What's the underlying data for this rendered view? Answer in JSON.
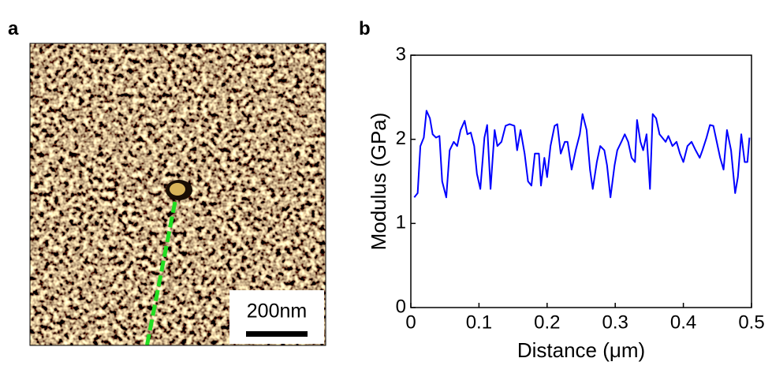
{
  "panel_a": {
    "label": "a",
    "scale_bar_label": "200nm"
  },
  "chart_data": {
    "type": "line",
    "panel_label": "b",
    "xlabel": "Distance (μm)",
    "ylabel": "Modulus (GPa)",
    "xlim": [
      0,
      0.5
    ],
    "ylim": [
      0,
      3
    ],
    "xticks": [
      0,
      0.1,
      0.2,
      0.3,
      0.4,
      0.5
    ],
    "yticks": [
      0,
      1,
      2,
      3
    ],
    "x": [
      0.005,
      0.01,
      0.014,
      0.019,
      0.023,
      0.028,
      0.032,
      0.037,
      0.042,
      0.046,
      0.052,
      0.057,
      0.063,
      0.068,
      0.073,
      0.079,
      0.083,
      0.088,
      0.093,
      0.097,
      0.102,
      0.108,
      0.112,
      0.117,
      0.123,
      0.127,
      0.133,
      0.139,
      0.145,
      0.152,
      0.156,
      0.161,
      0.167,
      0.172,
      0.177,
      0.182,
      0.188,
      0.191,
      0.196,
      0.2,
      0.205,
      0.211,
      0.215,
      0.22,
      0.226,
      0.23,
      0.236,
      0.242,
      0.248,
      0.252,
      0.258,
      0.263,
      0.267,
      0.273,
      0.278,
      0.284,
      0.288,
      0.293,
      0.299,
      0.303,
      0.309,
      0.314,
      0.319,
      0.324,
      0.329,
      0.332,
      0.337,
      0.341,
      0.346,
      0.351,
      0.355,
      0.36,
      0.365,
      0.369,
      0.374,
      0.378,
      0.384,
      0.39,
      0.395,
      0.4,
      0.406,
      0.412,
      0.418,
      0.424,
      0.428,
      0.434,
      0.439,
      0.444,
      0.449,
      0.454,
      0.459,
      0.464,
      0.47,
      0.476,
      0.48,
      0.485,
      0.49,
      0.494,
      0.497
    ],
    "series": [
      {
        "color": "#0000ff",
        "values": [
          1.31,
          1.36,
          1.92,
          2.02,
          2.34,
          2.25,
          2.06,
          2.02,
          2.04,
          1.5,
          1.31,
          1.87,
          1.97,
          1.92,
          2.11,
          2.22,
          2.06,
          2.08,
          1.92,
          1.59,
          1.41,
          2.02,
          2.17,
          1.41,
          2.11,
          1.92,
          1.97,
          2.16,
          2.18,
          2.16,
          1.87,
          2.11,
          1.83,
          1.5,
          1.45,
          1.83,
          1.83,
          1.45,
          1.78,
          1.55,
          1.92,
          2.16,
          2.18,
          1.83,
          1.97,
          1.97,
          1.64,
          1.87,
          2.06,
          2.3,
          2.11,
          1.64,
          1.41,
          1.73,
          1.92,
          1.87,
          1.69,
          1.31,
          1.69,
          1.87,
          1.97,
          2.06,
          1.97,
          1.78,
          1.73,
          2.23,
          1.97,
          1.87,
          2.06,
          1.41,
          2.3,
          2.25,
          2.06,
          2.02,
          1.97,
          2.04,
          1.92,
          1.97,
          1.83,
          1.73,
          1.92,
          1.97,
          1.87,
          1.78,
          1.87,
          2.02,
          2.17,
          2.16,
          1.97,
          1.78,
          1.64,
          2.11,
          1.87,
          1.36,
          1.55,
          2.06,
          1.73,
          1.73,
          2.02
        ]
      }
    ]
  }
}
